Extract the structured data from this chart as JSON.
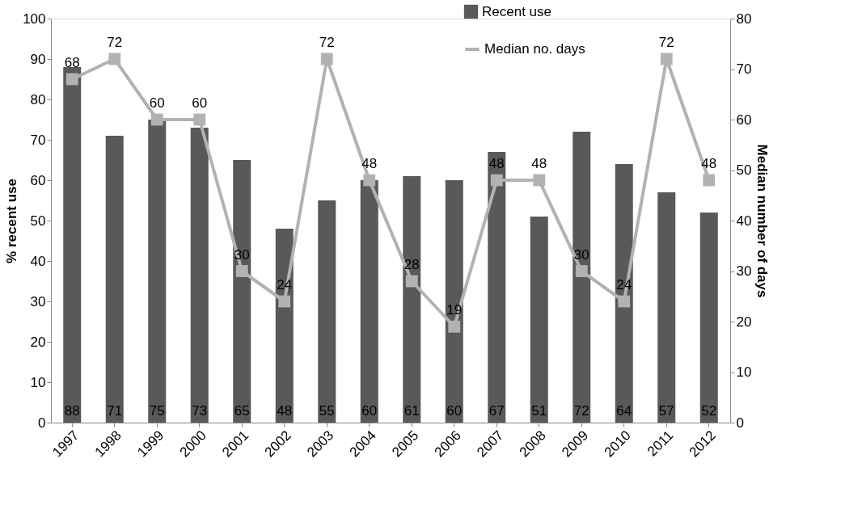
{
  "chart_data": {
    "type": "bar",
    "categories": [
      "1997",
      "1998",
      "1999",
      "2000",
      "2001",
      "2002",
      "2003",
      "2004",
      "2005",
      "2006",
      "2007",
      "2008",
      "2009",
      "2010",
      "2011",
      "2012"
    ],
    "ylabel": "% recent use",
    "y2label": "Median number of days",
    "series": [
      {
        "name": "Recent use",
        "color": "#595959",
        "values": [
          88,
          71,
          75,
          73,
          65,
          48,
          55,
          60,
          61,
          60,
          67,
          51,
          72,
          64,
          57,
          52
        ]
      },
      {
        "name": "Median no. days",
        "type": "line",
        "axis": "y2",
        "color": "#b2b2b2",
        "marker": "square",
        "values": [
          68,
          72,
          60,
          60,
          30,
          24,
          72,
          48,
          28,
          19,
          48,
          48,
          30,
          24,
          72,
          48
        ]
      }
    ],
    "ylim": [
      0,
      100
    ],
    "yticks": [
      0,
      10,
      20,
      30,
      40,
      50,
      60,
      70,
      80,
      90,
      100
    ],
    "y2lim": [
      0,
      80
    ],
    "y2ticks": [
      0,
      10,
      20,
      30,
      40,
      50,
      60,
      70,
      80
    ],
    "data_labels": true,
    "grid": false,
    "legend": "top right"
  }
}
